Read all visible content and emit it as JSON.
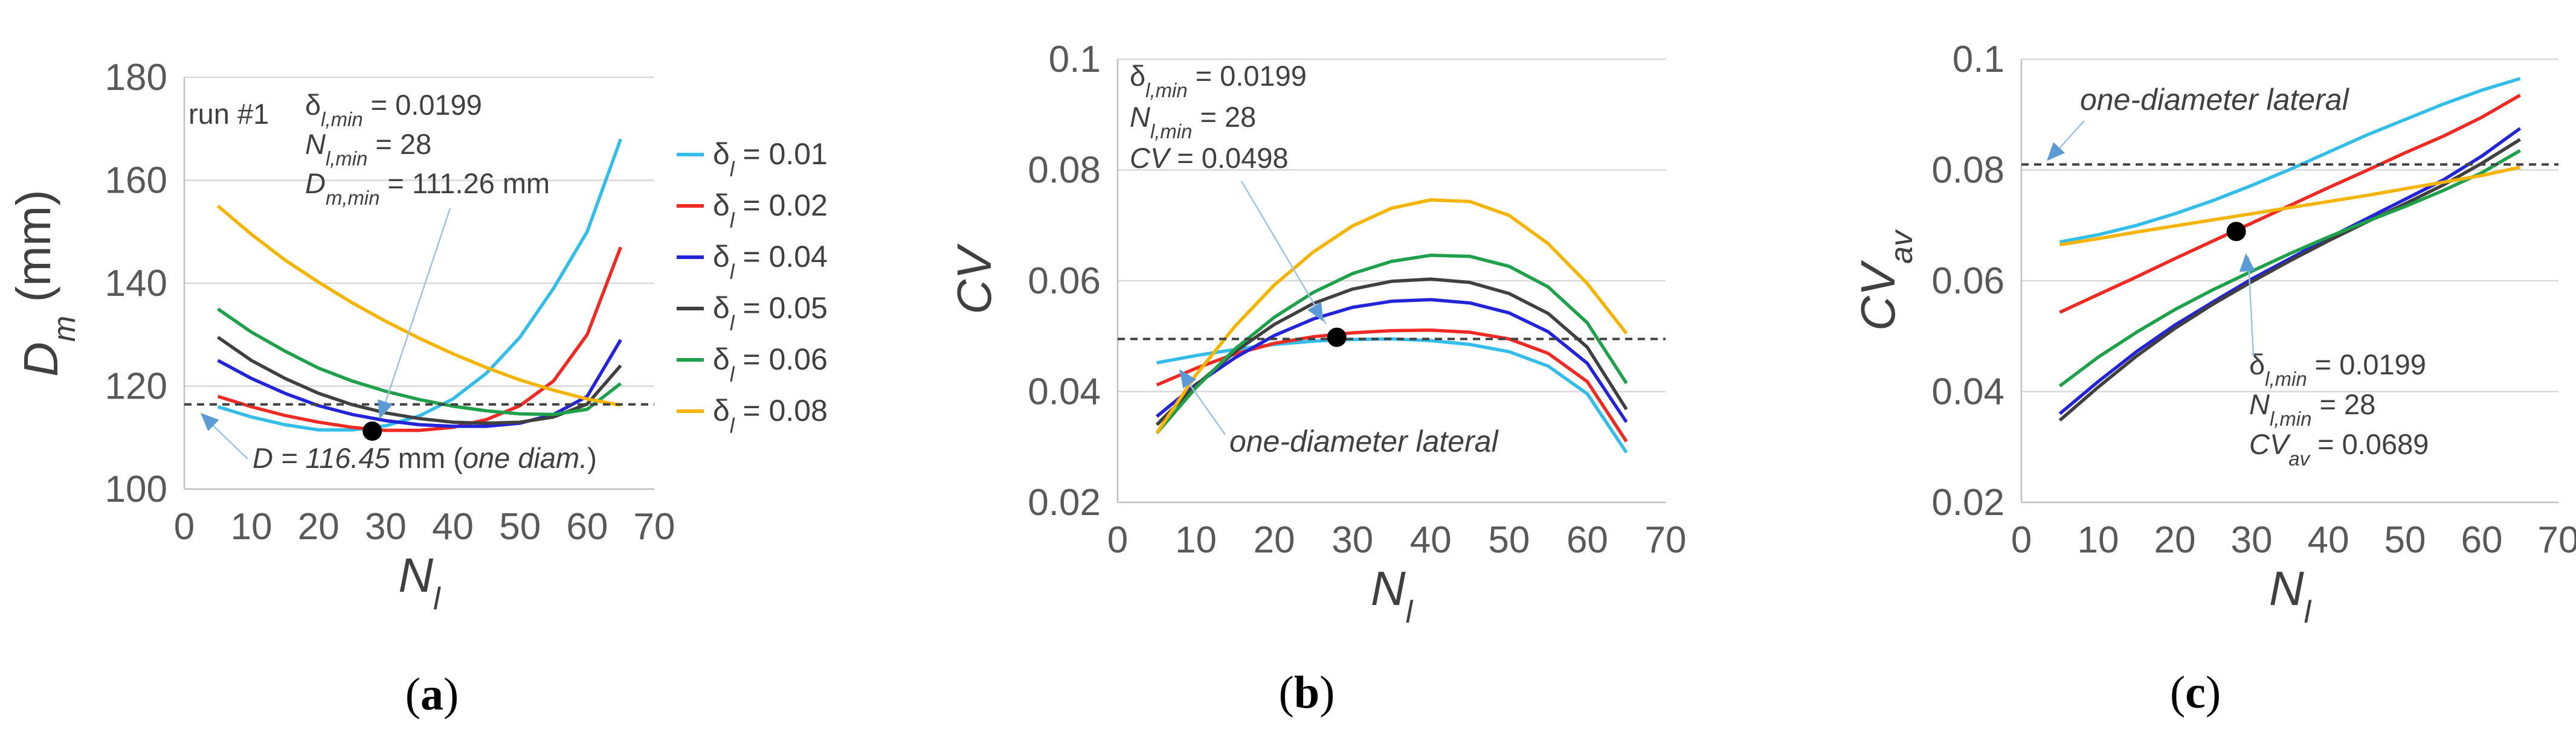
{
  "chart_data": [
    {
      "type": "line",
      "panel_label": "(a)",
      "xlabel": "N",
      "xlabel_sub": "l",
      "ylabel": "D",
      "ylabel_sub": "m",
      "ylabel_unit": " (mm)",
      "xlim": [
        0,
        70
      ],
      "ylim": [
        100,
        180
      ],
      "xticks": [
        "0",
        "10",
        "20",
        "30",
        "40",
        "50",
        "60",
        "70"
      ],
      "yticks": [
        "100",
        "120",
        "140",
        "160",
        "180"
      ],
      "x": [
        5,
        10,
        15,
        20,
        25,
        30,
        35,
        40,
        45,
        50,
        55,
        60,
        65
      ],
      "series": [
        {
          "name": "δl = 0.01",
          "color": "#33bde8",
          "values": [
            116,
            114,
            112.5,
            111.5,
            111.5,
            112.3,
            114.2,
            117.5,
            122.5,
            129.5,
            139,
            150,
            168
          ]
        },
        {
          "name": "δl = 0.02",
          "color": "#ee2a24",
          "values": [
            118,
            116,
            114.3,
            113,
            112,
            111.4,
            111.4,
            112,
            113.5,
            116.2,
            121,
            130,
            147
          ]
        },
        {
          "name": "δl = 0.04",
          "color": "#2323d8",
          "values": [
            125,
            121.5,
            118.6,
            116.2,
            114.5,
            113.3,
            112.5,
            112.2,
            112.2,
            112.8,
            114.5,
            118,
            129
          ]
        },
        {
          "name": "δl = 0.05",
          "color": "#404040",
          "values": [
            129.5,
            125,
            121.5,
            118.6,
            116.4,
            114.8,
            113.7,
            113,
            112.8,
            113,
            114,
            116.5,
            124
          ]
        },
        {
          "name": "δl = 0.06",
          "color": "#1fa04a",
          "values": [
            135,
            130.5,
            126.8,
            123.5,
            121,
            119,
            117.4,
            116.1,
            115.2,
            114.6,
            114.5,
            115.5,
            120.5
          ]
        },
        {
          "name": "δl = 0.08",
          "color": "#f5b400",
          "values": [
            155,
            149.5,
            144.5,
            140.2,
            136.2,
            132.6,
            129.3,
            126.3,
            123.6,
            121.2,
            119.2,
            117.5,
            116.3
          ]
        }
      ],
      "legend": {
        "entries": [
          {
            "prefix": "δ",
            "sub": "l",
            "suffix": " = 0.01"
          },
          {
            "prefix": "δ",
            "sub": "l",
            "suffix": " = 0.02"
          },
          {
            "prefix": "δ",
            "sub": "l",
            "suffix": " = 0.04"
          },
          {
            "prefix": "δ",
            "sub": "l",
            "suffix": " = 0.05"
          },
          {
            "prefix": "δ",
            "sub": "l",
            "suffix": " = 0.06"
          },
          {
            "prefix": "δ",
            "sub": "l",
            "suffix": " = 0.08"
          }
        ],
        "placement": "right"
      },
      "reference_line": {
        "y": 116.45
      },
      "optimum_point": {
        "x": 28,
        "y": 111.26
      },
      "annotations": {
        "run_label": "run #1",
        "line1": {
          "pre": "δ",
          "sub": "l,min",
          "post": " = 0.0199"
        },
        "line2": {
          "pre": "N",
          "sub": "l,min",
          "post": " = 28"
        },
        "line3": {
          "pre": "D",
          "sub": "m,min",
          "post": " = 111.26 mm"
        },
        "ref_label": {
          "a": "D = 116.45",
          "b": " mm (",
          "c": "one diam.",
          "d": ")"
        }
      }
    },
    {
      "type": "line",
      "panel_label": "(b)",
      "xlabel": "N",
      "xlabel_sub": "l",
      "ylabel": "CV",
      "xlim": [
        0,
        70
      ],
      "ylim": [
        0.02,
        0.1
      ],
      "xticks": [
        "0",
        "10",
        "20",
        "30",
        "40",
        "50",
        "60",
        "70"
      ],
      "yticks": [
        "0.02",
        "0.04",
        "0.06",
        "0.08",
        "0.1"
      ],
      "x": [
        5,
        10,
        15,
        20,
        25,
        30,
        35,
        40,
        45,
        50,
        55,
        60,
        65
      ],
      "series": [
        {
          "name": "δl = 0.01",
          "color": "#33bde8",
          "values": [
            0.0452,
            0.0465,
            0.0476,
            0.0485,
            0.0491,
            0.0494,
            0.0495,
            0.0492,
            0.0485,
            0.0472,
            0.0446,
            0.0396,
            0.029
          ]
        },
        {
          "name": "δl = 0.02",
          "color": "#ee2a24",
          "values": [
            0.0412,
            0.0442,
            0.0468,
            0.0487,
            0.0499,
            0.0506,
            0.051,
            0.0511,
            0.0507,
            0.0495,
            0.0469,
            0.0418,
            0.031
          ]
        },
        {
          "name": "δl = 0.04",
          "color": "#2323d8",
          "values": [
            0.0355,
            0.0413,
            0.0461,
            0.0501,
            0.0531,
            0.0552,
            0.0563,
            0.0566,
            0.056,
            0.0542,
            0.0508,
            0.0451,
            0.0345
          ]
        },
        {
          "name": "δl = 0.05",
          "color": "#404040",
          "values": [
            0.034,
            0.0411,
            0.0472,
            0.0521,
            0.0559,
            0.0585,
            0.0599,
            0.0603,
            0.0597,
            0.0577,
            0.0541,
            0.048,
            0.0368
          ]
        },
        {
          "name": "δl = 0.06",
          "color": "#1fa04a",
          "values": [
            0.0325,
            0.0407,
            0.0477,
            0.0534,
            0.0579,
            0.0613,
            0.0635,
            0.0646,
            0.0644,
            0.0626,
            0.0589,
            0.0524,
            0.0415
          ]
        },
        {
          "name": "δl = 0.08",
          "color": "#f5b400",
          "values": [
            0.0325,
            0.043,
            0.0518,
            0.0592,
            0.0652,
            0.0699,
            0.0731,
            0.0746,
            0.0743,
            0.0718,
            0.0667,
            0.0595,
            0.0505
          ]
        }
      ],
      "reference_line": {
        "y": 0.0495
      },
      "optimum_point": {
        "x": 28,
        "y": 0.0498
      },
      "annotations": {
        "line1": {
          "pre": "δ",
          "sub": "l,min",
          "post": " = 0.0199"
        },
        "line2": {
          "pre": "N",
          "sub": "l,min",
          "post": " = 28"
        },
        "line3": {
          "pre": "CV",
          "sub": "",
          "post": " = 0.0498"
        },
        "ref_label": "one-diameter lateral"
      }
    },
    {
      "type": "line",
      "panel_label": "(c)",
      "xlabel": "N",
      "xlabel_sub": "l",
      "ylabel": "CV",
      "ylabel_sub": "av",
      "xlim": [
        0,
        70
      ],
      "ylim": [
        0.02,
        0.1
      ],
      "xticks": [
        "0",
        "10",
        "20",
        "30",
        "40",
        "50",
        "60",
        "70"
      ],
      "yticks": [
        "0.02",
        "0.04",
        "0.06",
        "0.08",
        "0.1"
      ],
      "x": [
        5,
        10,
        15,
        20,
        25,
        30,
        35,
        40,
        45,
        50,
        55,
        60,
        65
      ],
      "series": [
        {
          "name": "δl = 0.01",
          "color": "#33bde8",
          "values": [
            0.067,
            0.0683,
            0.07,
            0.0721,
            0.0745,
            0.0772,
            0.0801,
            0.0832,
            0.0863,
            0.0891,
            0.0919,
            0.0944,
            0.0965
          ]
        },
        {
          "name": "δl = 0.02",
          "color": "#ee2a24",
          "values": [
            0.0543,
            0.0575,
            0.0607,
            0.064,
            0.0672,
            0.0704,
            0.0736,
            0.0768,
            0.0799,
            0.0831,
            0.0861,
            0.0895,
            0.0935
          ]
        },
        {
          "name": "δl = 0.04",
          "color": "#2323d8",
          "values": [
            0.036,
            0.0418,
            0.0472,
            0.052,
            0.0562,
            0.0603,
            0.064,
            0.0677,
            0.0712,
            0.0747,
            0.0782,
            0.0825,
            0.0875
          ]
        },
        {
          "name": "δl = 0.05",
          "color": "#404040",
          "values": [
            0.0348,
            0.0408,
            0.0464,
            0.0514,
            0.0558,
            0.0598,
            0.0636,
            0.0672,
            0.0706,
            0.0739,
            0.0773,
            0.0812,
            0.0855
          ]
        },
        {
          "name": "δl = 0.06",
          "color": "#1fa04a",
          "values": [
            0.041,
            0.0462,
            0.0507,
            0.0548,
            0.0584,
            0.0617,
            0.0649,
            0.0679,
            0.0707,
            0.0734,
            0.0763,
            0.0795,
            0.0835
          ]
        },
        {
          "name": "δl = 0.08",
          "color": "#f5b400",
          "values": [
            0.0665,
            0.0676,
            0.0688,
            0.0699,
            0.071,
            0.0721,
            0.0732,
            0.0743,
            0.0754,
            0.0766,
            0.0778,
            0.079,
            0.0805
          ]
        }
      ],
      "reference_line": {
        "y": 0.081
      },
      "optimum_point": {
        "x": 28,
        "y": 0.0689
      },
      "annotations": {
        "line1": {
          "pre": "δ",
          "sub": "l,min",
          "post": " = 0.0199"
        },
        "line2": {
          "pre": "N",
          "sub": "l,min",
          "post": " = 28"
        },
        "line3": {
          "pre": "CV",
          "sub": "av",
          "post": " = 0.0689"
        },
        "ref_label": "one-diameter lateral"
      }
    }
  ]
}
